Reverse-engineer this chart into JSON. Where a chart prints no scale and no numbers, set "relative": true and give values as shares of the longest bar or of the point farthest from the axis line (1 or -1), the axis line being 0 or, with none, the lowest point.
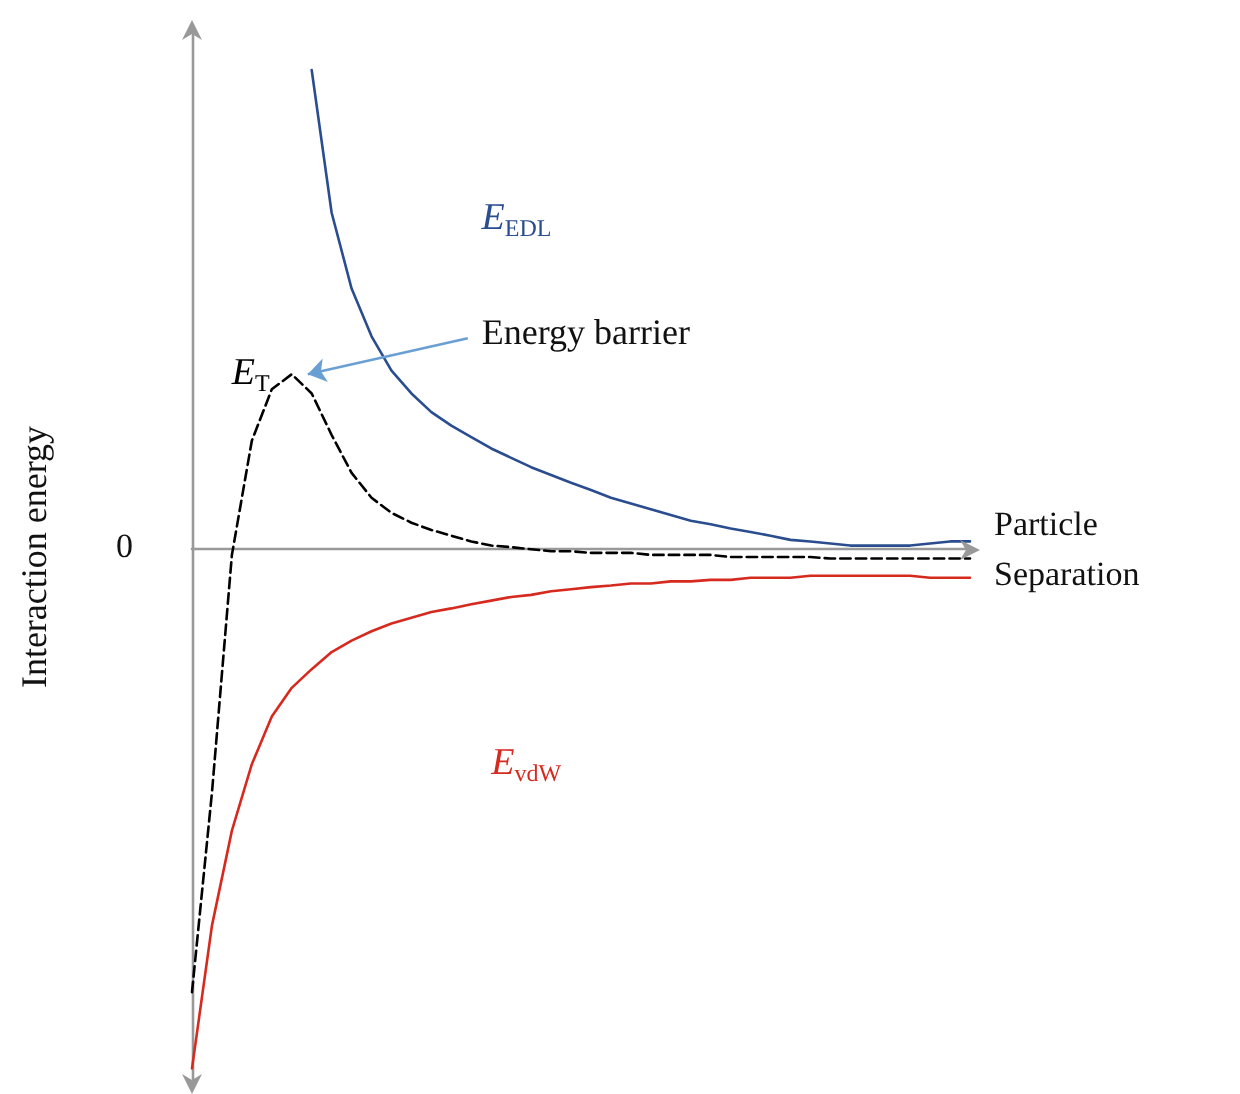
{
  "chart_data": {
    "type": "line",
    "relative": true,
    "xlabel": "Particle\nSeparation",
    "ylabel": "Interaction energy",
    "annotations": [
      "Energy barrier",
      "0"
    ],
    "legend": false,
    "grid": false,
    "marker": "none",
    "categories": [
      null,
      null,
      null,
      null,
      null,
      null,
      null,
      null,
      null,
      null,
      null,
      null,
      null,
      null,
      null,
      null,
      null,
      null,
      null,
      null,
      null,
      null,
      null,
      null,
      null,
      null,
      null,
      null,
      null,
      null,
      null,
      null,
      null,
      null,
      null,
      null,
      null,
      null,
      null,
      null
    ],
    "series": [
      {
        "name": "E$_{EDL}$",
        "color": "#2a4d8f",
        "line_style": "solid",
        "values": [
          null,
          null,
          null,
          null,
          null,
          null,
          0.923,
          0.648,
          0.502,
          0.41,
          0.344,
          0.3,
          0.264,
          0.238,
          0.216,
          0.194,
          0.176,
          0.158,
          0.143,
          0.128,
          0.114,
          0.099,
          0.088,
          0.077,
          0.066,
          0.055,
          0.048,
          0.04,
          0.033,
          0.026,
          0.018,
          0.015,
          0.011,
          0.007,
          0.007,
          0.007,
          0.007,
          0.011,
          0.015,
          0.015
        ]
      },
      {
        "name": "E$_{T}$",
        "color": "#000000",
        "line_style": "dashed",
        "values": [
          -0.853,
          -0.469,
          -0.011,
          0.209,
          0.308,
          0.337,
          0.3,
          0.22,
          0.147,
          0.099,
          0.07,
          0.051,
          0.037,
          0.026,
          0.015,
          0.007,
          0.004,
          0,
          -0.004,
          -0.004,
          -0.007,
          -0.007,
          -0.007,
          -0.011,
          -0.011,
          -0.011,
          -0.011,
          -0.015,
          -0.015,
          -0.015,
          -0.015,
          -0.015,
          -0.018,
          -0.018,
          -0.018,
          -0.018,
          -0.018,
          -0.018,
          -0.018,
          -0.018
        ]
      },
      {
        "name": "E$_{vdW}$",
        "color": "#d62a1f",
        "line_style": "solid",
        "values": [
          -1,
          -0.725,
          -0.542,
          -0.414,
          -0.322,
          -0.267,
          -0.231,
          -0.198,
          -0.176,
          -0.158,
          -0.143,
          -0.132,
          -0.121,
          -0.114,
          -0.106,
          -0.099,
          -0.092,
          -0.088,
          -0.081,
          -0.077,
          -0.073,
          -0.07,
          -0.066,
          -0.066,
          -0.062,
          -0.062,
          -0.059,
          -0.059,
          -0.055,
          -0.055,
          -0.055,
          -0.051,
          -0.051,
          -0.051,
          -0.051,
          -0.051,
          -0.051,
          -0.055,
          -0.055,
          -0.055
        ]
      }
    ]
  }
}
